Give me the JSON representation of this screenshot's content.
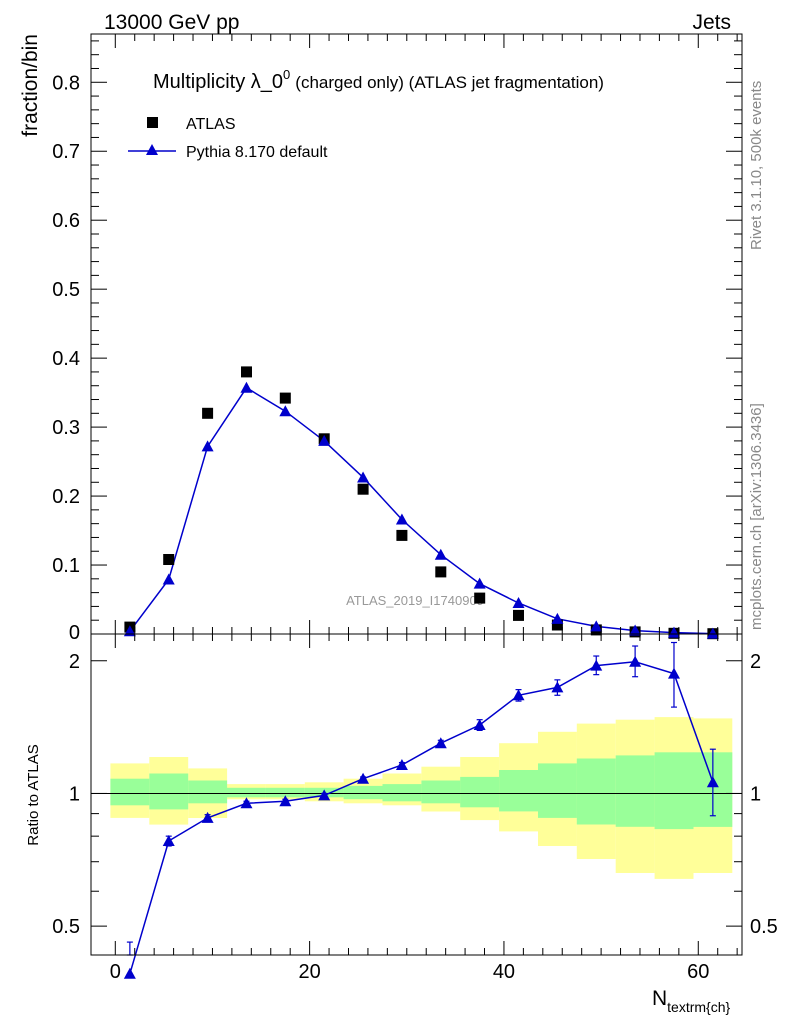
{
  "header": {
    "energy_label": "13000 GeV pp",
    "category_label": "Jets"
  },
  "side_labels": {
    "rivet_label": "Rivet 3.1.10,  500k events",
    "source_label": "mcplots.cern.ch [arXiv:1306.3436]"
  },
  "watermark": "ATLAS_2019_I1740909",
  "chart_data": [
    {
      "type": "scatter",
      "panel": "main",
      "title": "Multiplicity λ_0",
      "title_superscript": "0",
      "title_suffix": "(charged only) (ATLAS jet fragmentation)",
      "ylabel": "fraction/bin",
      "xlim": [
        -2.5,
        64.5
      ],
      "ylim": [
        0,
        0.87
      ],
      "yticks": [
        0.1,
        0.2,
        0.3,
        0.4,
        0.5,
        0.6,
        0.7,
        0.8
      ],
      "ytick_labels": [
        "0.1",
        "0.2",
        "0.3",
        "0.4",
        "0.5",
        "0.6",
        "0.7",
        "0.8"
      ],
      "ytick_zero_label": "0",
      "legend_position": "top-left",
      "series": [
        {
          "name": "ATLAS",
          "marker": "square",
          "color": "#000000",
          "x": [
            1.5,
            5.5,
            9.5,
            13.5,
            17.5,
            21.5,
            25.5,
            29.5,
            33.5,
            37.5,
            41.5,
            45.5,
            49.5,
            53.5,
            57.5,
            61.5
          ],
          "y": [
            0.01,
            0.108,
            0.32,
            0.38,
            0.342,
            0.283,
            0.21,
            0.143,
            0.09,
            0.052,
            0.027,
            0.013,
            0.006,
            0.003,
            0.001,
            0.0005
          ]
        },
        {
          "name": "Pythia 8.170 default",
          "marker": "triangle",
          "color": "#0000cc",
          "x": [
            1.5,
            5.5,
            9.5,
            13.5,
            17.5,
            21.5,
            25.5,
            29.5,
            33.5,
            37.5,
            41.5,
            45.5,
            49.5,
            53.5,
            57.5,
            61.5
          ],
          "y": [
            0.004,
            0.079,
            0.272,
            0.357,
            0.323,
            0.28,
            0.227,
            0.166,
            0.115,
            0.073,
            0.045,
            0.022,
            0.011,
            0.005,
            0.002,
            0.0006
          ]
        }
      ]
    },
    {
      "type": "line",
      "panel": "ratio",
      "ylabel": "Ratio to ATLAS",
      "xlabel_main": "N",
      "xlabel_sub": "textrm{ch}",
      "xlim": [
        -2.5,
        64.5
      ],
      "ylim": [
        0.43,
        2.3
      ],
      "yscale": "log",
      "yticks": [
        0.5,
        1,
        2
      ],
      "ytick_labels": [
        "0.5",
        "1",
        "2"
      ],
      "xticks": [
        0,
        20,
        40,
        60
      ],
      "xtick_labels": [
        "0",
        "20",
        "40",
        "60"
      ],
      "reference_line": 1,
      "bin_edges": [
        -0.5,
        3.5,
        7.5,
        11.5,
        15.5,
        19.5,
        23.5,
        27.5,
        31.5,
        35.5,
        39.5,
        43.5,
        47.5,
        51.5,
        55.5,
        59.5,
        63.5
      ],
      "band_yellow": {
        "color": "#ffff99",
        "low": [
          0.88,
          0.85,
          0.88,
          0.97,
          0.97,
          0.96,
          0.95,
          0.94,
          0.91,
          0.87,
          0.82,
          0.76,
          0.71,
          0.66,
          0.64,
          0.66
        ],
        "high": [
          1.17,
          1.21,
          1.14,
          1.05,
          1.05,
          1.06,
          1.08,
          1.11,
          1.15,
          1.21,
          1.3,
          1.38,
          1.44,
          1.47,
          1.49,
          1.48
        ]
      },
      "band_green": {
        "color": "#99ff99",
        "low": [
          0.94,
          0.92,
          0.95,
          0.98,
          0.98,
          0.98,
          0.97,
          0.96,
          0.95,
          0.93,
          0.91,
          0.88,
          0.85,
          0.84,
          0.83,
          0.84
        ],
        "high": [
          1.08,
          1.11,
          1.07,
          1.03,
          1.03,
          1.03,
          1.04,
          1.05,
          1.07,
          1.09,
          1.13,
          1.17,
          1.2,
          1.22,
          1.24,
          1.24
        ]
      },
      "series": [
        {
          "name": "Pythia 8.170 default",
          "color": "#0000cc",
          "x": [
            1.5,
            5.5,
            9.5,
            13.5,
            17.5,
            21.5,
            25.5,
            29.5,
            33.5,
            37.5,
            41.5,
            45.5,
            49.5,
            53.5,
            57.5,
            61.5
          ],
          "y": [
            0.39,
            0.78,
            0.88,
            0.95,
            0.96,
            0.99,
            1.08,
            1.16,
            1.3,
            1.43,
            1.67,
            1.74,
            1.95,
            1.99,
            1.87,
            1.06
          ],
          "err_low": [
            0.06,
            0.02,
            0.015,
            0.01,
            0.01,
            0.01,
            0.01,
            0.015,
            0.02,
            0.04,
            0.05,
            0.07,
            0.09,
            0.15,
            0.3,
            0.17
          ],
          "err_high": [
            0.07,
            0.02,
            0.015,
            0.01,
            0.01,
            0.01,
            0.01,
            0.015,
            0.02,
            0.04,
            0.05,
            0.07,
            0.1,
            0.17,
            0.33,
            0.2
          ]
        }
      ]
    }
  ]
}
